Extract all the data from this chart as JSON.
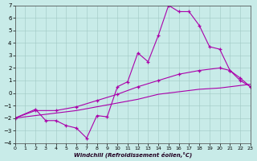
{
  "background_color": "#c8ebe8",
  "grid_color": "#a0c8c4",
  "line_color": "#aa00aa",
  "xlim": [
    0,
    23
  ],
  "ylim": [
    -4,
    7
  ],
  "xticks": [
    0,
    1,
    2,
    3,
    4,
    5,
    6,
    7,
    8,
    9,
    10,
    11,
    12,
    13,
    14,
    15,
    16,
    17,
    18,
    19,
    20,
    21,
    22,
    23
  ],
  "yticks": [
    -4,
    -3,
    -2,
    -1,
    0,
    1,
    2,
    3,
    4,
    5,
    6,
    7
  ],
  "xlabel": "Windchill (Refroidissement éolien,°C)",
  "line1_x": [
    0,
    2,
    3,
    4,
    5,
    6,
    7,
    8,
    9,
    10,
    11,
    12,
    13,
    14,
    15,
    16,
    17,
    18,
    19,
    20,
    21,
    22,
    23
  ],
  "line1_y": [
    -2.0,
    -1.3,
    -2.2,
    -2.2,
    -2.6,
    -2.8,
    -3.6,
    -1.8,
    -1.9,
    0.5,
    0.9,
    3.2,
    2.5,
    4.6,
    7.0,
    6.5,
    6.5,
    5.4,
    3.7,
    3.5,
    1.8,
    1.0,
    0.5
  ],
  "line2_x": [
    0,
    2,
    4,
    6,
    8,
    10,
    12,
    14,
    16,
    18,
    20,
    21,
    22,
    23
  ],
  "line2_y": [
    -2.0,
    -1.4,
    -1.4,
    -1.1,
    -0.6,
    -0.1,
    0.5,
    1.0,
    1.5,
    1.8,
    2.0,
    1.8,
    1.2,
    0.5
  ],
  "line3_x": [
    0,
    2,
    4,
    6,
    8,
    10,
    12,
    14,
    16,
    18,
    20,
    22,
    23
  ],
  "line3_y": [
    -2.0,
    -1.8,
    -1.6,
    -1.4,
    -1.1,
    -0.8,
    -0.5,
    -0.1,
    0.1,
    0.3,
    0.4,
    0.6,
    0.7
  ]
}
